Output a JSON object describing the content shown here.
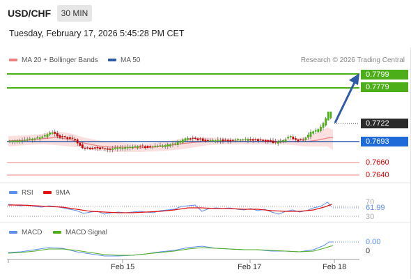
{
  "header": {
    "pair": "USD/CHF",
    "timeframe": "30 MIN",
    "datetime": "Tuesday, February 17, 2026 5:45:28 PM CET"
  },
  "legend": {
    "ma20": "MA 20 + Bollinger Bands",
    "ma50": "MA 50",
    "copyright": "Research © 2026 Trading Central"
  },
  "price_levels": {
    "resistance_2": "0.7799",
    "resistance_1": "0.7779",
    "current": "0.7722",
    "pivot": "0.7693",
    "support_1": "0.7660",
    "support_2": "0.7640"
  },
  "rsi": {
    "label": "RSI",
    "ma_label": "9MA",
    "value": "61.99",
    "level_70": "70",
    "level_30": "30"
  },
  "macd": {
    "label": "MACD",
    "signal_label": "MACD Signal",
    "value": "0.00",
    "zero": "0"
  },
  "xaxis": {
    "ticks": [
      "Feb 15",
      "Feb 17",
      "Feb 18"
    ]
  },
  "colors": {
    "up": "#4caf1a",
    "down": "#cc0000",
    "ma20": "#f08080",
    "ma50": "#2f5aa8",
    "band": "#fbd6d6",
    "arrow": "#2f5aa8",
    "rsi": "#5b8def",
    "rsi_ma": "#e01010",
    "macd": "#5b8def",
    "macd_signal": "#4caf1a"
  }
}
